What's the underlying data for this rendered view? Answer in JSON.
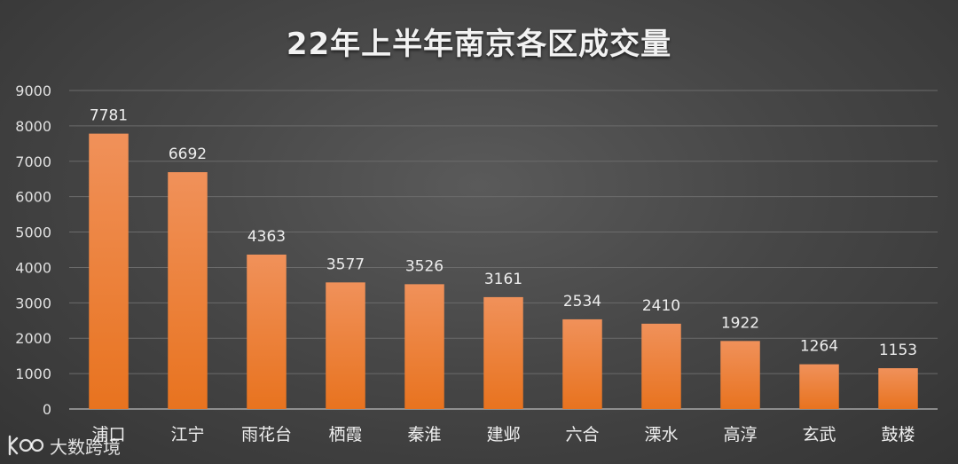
{
  "chart_data": {
    "type": "bar",
    "title": "22年上半年南京各区成交量",
    "categories": [
      "浦口",
      "江宁",
      "雨花台",
      "栖霞",
      "秦淮",
      "建邺",
      "六合",
      "溧水",
      "高淳",
      "玄武",
      "鼓楼"
    ],
    "values": [
      7781,
      6692,
      4363,
      3577,
      3526,
      3161,
      2534,
      2410,
      1922,
      1264,
      1153
    ],
    "ylim": [
      0,
      9000
    ],
    "yticks": [
      0,
      1000,
      2000,
      3000,
      4000,
      5000,
      6000,
      7000,
      8000,
      9000
    ],
    "grid": true,
    "xlabel": "",
    "ylabel": "",
    "bar_color_top": "#f0915a",
    "bar_color_bottom": "#e8731f"
  },
  "watermark": {
    "text": "大数跨境"
  }
}
